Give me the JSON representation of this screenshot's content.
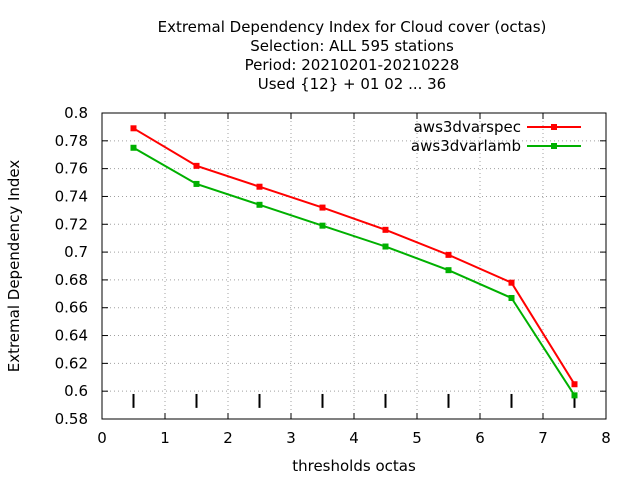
{
  "chart_data": {
    "type": "line",
    "title_lines": [
      "Extremal Dependency Index  for Cloud cover (octas)",
      "Selection: ALL    595 stations",
      "Period: 20210201-20210228",
      "Used {12} + 01 02 ... 36"
    ],
    "xlabel": "thresholds octas",
    "ylabel": "Extremal Dependency Index",
    "xlim": [
      0,
      8
    ],
    "ylim": [
      0.58,
      0.8
    ],
    "x_ticks": [
      0,
      1,
      2,
      3,
      4,
      5,
      6,
      7,
      8
    ],
    "x_tick_labels": [
      "0",
      "1",
      "2",
      "3",
      "4",
      "5",
      "6",
      "7",
      "8"
    ],
    "y_ticks": [
      0.58,
      0.6,
      0.62,
      0.64,
      0.66,
      0.68,
      0.7,
      0.72,
      0.74,
      0.76,
      0.78,
      0.8
    ],
    "y_tick_labels": [
      "0.58",
      "0.6",
      "0.62",
      "0.64",
      "0.66",
      "0.68",
      "0.7",
      "0.72",
      "0.74",
      "0.76",
      "0.78",
      "0.8"
    ],
    "grid": true,
    "legend_position": "top-right",
    "x": [
      0.5,
      1.5,
      2.5,
      3.5,
      4.5,
      5.5,
      6.5,
      7.5
    ],
    "series": [
      {
        "name": "aws3dvarspec",
        "color": "#ff0000",
        "values": [
          0.789,
          0.762,
          0.747,
          0.732,
          0.716,
          0.698,
          0.678,
          0.605
        ]
      },
      {
        "name": "aws3dvarlamb",
        "color": "#00b000",
        "values": [
          0.775,
          0.749,
          0.734,
          0.719,
          0.704,
          0.687,
          0.667,
          0.597
        ]
      }
    ],
    "event_marks_x": [
      0.5,
      1.5,
      2.5,
      3.5,
      4.5,
      5.5,
      6.5,
      7.5
    ],
    "event_marks_y": [
      0.588,
      0.598
    ]
  }
}
